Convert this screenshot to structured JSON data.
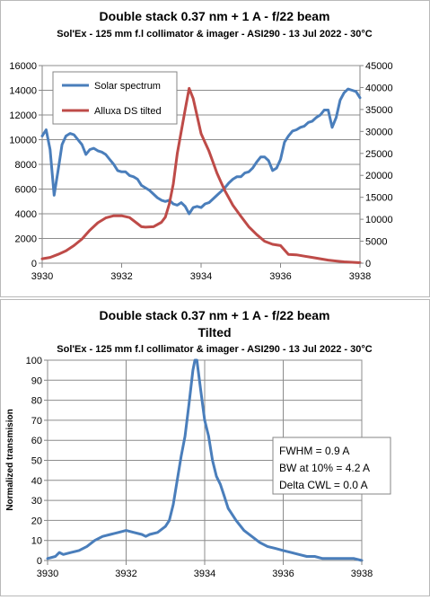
{
  "colors": {
    "series_blue": "#4a7ebb",
    "series_red": "#be4b48",
    "grid": "#8c8c8c",
    "axis": "#868686"
  },
  "chart_data": [
    {
      "type": "line",
      "title": "Double stack 0.37 nm + 1 A - f/22 beam",
      "subtitle": "Sol'Ex - 125 mm f.l collimator & imager - ASI290 - 13 Jul 2022 - 30°C",
      "xlabel": "",
      "ylabel": "",
      "xlim": [
        3930,
        3938
      ],
      "ylim": [
        0,
        16000
      ],
      "y2lim": [
        0,
        45000
      ],
      "xticks": [
        "3930",
        "3932",
        "3934",
        "3936",
        "3938"
      ],
      "yticks": [
        "0",
        "2000",
        "4000",
        "6000",
        "8000",
        "10000",
        "12000",
        "14000",
        "16000"
      ],
      "y2ticks": [
        "0",
        "5000",
        "10000",
        "15000",
        "20000",
        "25000",
        "30000",
        "35000",
        "40000",
        "45000"
      ],
      "grid": "horizontal",
      "legend_position": "top-left",
      "series": [
        {
          "name": "Solar spectrum",
          "color": "#4a7ebb",
          "axis": "left",
          "x": [
            3930.0,
            3930.1,
            3930.2,
            3930.3,
            3930.4,
            3930.5,
            3930.6,
            3930.7,
            3930.8,
            3930.9,
            3931.0,
            3931.1,
            3931.2,
            3931.3,
            3931.4,
            3931.5,
            3931.6,
            3931.7,
            3931.8,
            3931.9,
            3932.0,
            3932.1,
            3932.2,
            3932.3,
            3932.4,
            3932.5,
            3932.6,
            3932.7,
            3932.8,
            3932.9,
            3933.0,
            3933.1,
            3933.2,
            3933.3,
            3933.4,
            3933.5,
            3933.6,
            3933.7,
            3933.8,
            3933.9,
            3934.0,
            3934.1,
            3934.2,
            3934.3,
            3934.4,
            3934.5,
            3934.6,
            3934.7,
            3934.8,
            3934.9,
            3935.0,
            3935.1,
            3935.2,
            3935.3,
            3935.4,
            3935.5,
            3935.6,
            3935.7,
            3935.8,
            3935.9,
            3936.0,
            3936.1,
            3936.2,
            3936.3,
            3936.4,
            3936.5,
            3936.6,
            3936.7,
            3936.8,
            3936.9,
            3937.0,
            3937.1,
            3937.2,
            3937.3,
            3937.4,
            3937.5,
            3937.6,
            3937.7,
            3937.8,
            3937.9,
            3938.0
          ],
          "y": [
            10300,
            10800,
            9200,
            5500,
            7500,
            9600,
            10300,
            10500,
            10400,
            10000,
            9600,
            8800,
            9200,
            9300,
            9100,
            9000,
            8800,
            8400,
            8000,
            7500,
            7400,
            7400,
            7100,
            7000,
            6800,
            6300,
            6100,
            5900,
            5600,
            5300,
            5100,
            5000,
            5100,
            4800,
            4700,
            4900,
            4600,
            4000,
            4500,
            4600,
            4500,
            4800,
            4900,
            5200,
            5500,
            5800,
            6100,
            6500,
            6800,
            7000,
            7000,
            7300,
            7400,
            7700,
            8200,
            8600,
            8600,
            8300,
            7500,
            7700,
            8400,
            9800,
            10300,
            10700,
            10800,
            11000,
            11100,
            11400,
            11500,
            11800,
            12000,
            12400,
            12400,
            11000,
            11800,
            13200,
            13800,
            14100,
            14000,
            13900,
            13400
          ]
        },
        {
          "name": "Alluxa DS tilted",
          "color": "#be4b48",
          "axis": "right",
          "x": [
            3930.0,
            3930.2,
            3930.4,
            3930.6,
            3930.8,
            3931.0,
            3931.2,
            3931.4,
            3931.6,
            3931.8,
            3932.0,
            3932.2,
            3932.4,
            3932.5,
            3932.6,
            3932.8,
            3933.0,
            3933.1,
            3933.2,
            3933.3,
            3933.4,
            3933.5,
            3933.6,
            3933.7,
            3933.8,
            3933.9,
            3934.0,
            3934.1,
            3934.2,
            3934.3,
            3934.4,
            3934.5,
            3934.6,
            3934.8,
            3935.0,
            3935.2,
            3935.4,
            3935.6,
            3935.8,
            3936.0,
            3936.2,
            3936.4,
            3936.6,
            3936.8,
            3937.0,
            3937.2,
            3937.4,
            3937.6,
            3937.8,
            3938.0
          ],
          "y": [
            1000,
            1300,
            2000,
            2800,
            4000,
            5500,
            7500,
            9200,
            10300,
            10800,
            10800,
            10400,
            9000,
            8300,
            8200,
            8300,
            9300,
            10500,
            13500,
            18000,
            25000,
            30000,
            35000,
            39800,
            37500,
            33500,
            29500,
            27500,
            25500,
            23000,
            20500,
            18500,
            16500,
            13200,
            10700,
            8300,
            6500,
            5000,
            4300,
            4000,
            2000,
            1900,
            1600,
            1300,
            1000,
            700,
            500,
            300,
            200,
            100
          ]
        }
      ]
    },
    {
      "type": "line",
      "title": "Double stack 0.37 nm + 1 A - f/22 beam",
      "title2": "Tilted",
      "subtitle": "Sol'Ex - 125 mm f.l collimator & imager - ASI290 - 13 Jul 2022 - 30°C",
      "xlabel": "",
      "ylabel": "Normalized transmision",
      "xlim": [
        3930,
        3938
      ],
      "ylim": [
        0,
        100
      ],
      "xticks": [
        "3930",
        "3932",
        "3934",
        "3936",
        "3938"
      ],
      "yticks": [
        "0",
        "10",
        "20",
        "30",
        "40",
        "50",
        "60",
        "70",
        "80",
        "90",
        "100"
      ],
      "grid": "both",
      "legend_position": "none",
      "annotation": [
        "FWHM = 0.9 A",
        "BW at 10% = 4.2 A",
        "Delta CWL = 0.0 A"
      ],
      "series": [
        {
          "color": "#4a7ebb",
          "x": [
            3930.0,
            3930.2,
            3930.3,
            3930.4,
            3930.6,
            3930.8,
            3931.0,
            3931.2,
            3931.4,
            3931.6,
            3931.8,
            3932.0,
            3932.2,
            3932.4,
            3932.5,
            3932.6,
            3932.8,
            3933.0,
            3933.1,
            3933.2,
            3933.3,
            3933.4,
            3933.5,
            3933.6,
            3933.7,
            3933.75,
            3933.8,
            3933.9,
            3934.0,
            3934.1,
            3934.2,
            3934.3,
            3934.4,
            3934.5,
            3934.6,
            3934.8,
            3935.0,
            3935.2,
            3935.4,
            3935.6,
            3935.8,
            3936.0,
            3936.2,
            3936.4,
            3936.6,
            3936.8,
            3937.0,
            3937.2,
            3937.4,
            3937.6,
            3937.8,
            3938.0
          ],
          "y": [
            1,
            2,
            4,
            3,
            4,
            5,
            7,
            10,
            12,
            13,
            14,
            15,
            14,
            13,
            12,
            13,
            14,
            17,
            20,
            28,
            40,
            52,
            62,
            78,
            95,
            100,
            100,
            85,
            70,
            62,
            50,
            42,
            38,
            32,
            26,
            20,
            15,
            12,
            9,
            7,
            6,
            5,
            4,
            3,
            2,
            2,
            1,
            1,
            1,
            1,
            1,
            0
          ]
        }
      ]
    }
  ]
}
